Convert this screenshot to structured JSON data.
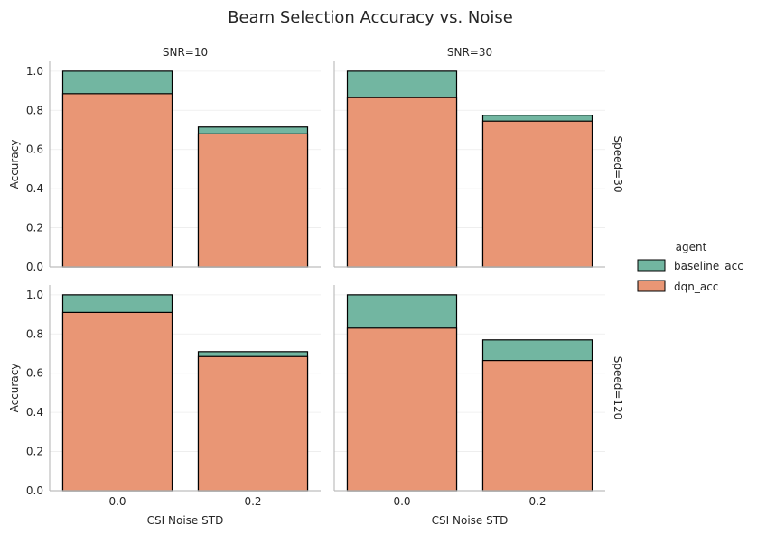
{
  "chart_data": {
    "type": "bar",
    "title": "Beam Selection Accuracy vs. Noise",
    "xlabel": "CSI Noise STD",
    "ylabel": "Accuracy",
    "categories": [
      "0.0",
      "0.2"
    ],
    "ylim": [
      0,
      1.05
    ],
    "yticks": [
      "0.0",
      "0.2",
      "0.4",
      "0.6",
      "0.8",
      "1.0"
    ],
    "grid": true,
    "legend": {
      "title": "agent",
      "position": "right",
      "entries": [
        "baseline_acc",
        "dqn_acc"
      ]
    },
    "colors": {
      "baseline_acc": "#72b6a1",
      "dqn_acc": "#e99675",
      "edge": "#000000"
    },
    "col_labels": [
      "SNR=10",
      "SNR=30"
    ],
    "row_labels": [
      "Speed=30",
      "Speed=120"
    ],
    "panels": [
      {
        "row": 0,
        "col": 0,
        "series": [
          {
            "name": "baseline_acc",
            "values": [
              1.0,
              0.715
            ]
          },
          {
            "name": "dqn_acc",
            "values": [
              0.885,
              0.68
            ]
          }
        ]
      },
      {
        "row": 0,
        "col": 1,
        "series": [
          {
            "name": "baseline_acc",
            "values": [
              1.0,
              0.775
            ]
          },
          {
            "name": "dqn_acc",
            "values": [
              0.865,
              0.745
            ]
          }
        ]
      },
      {
        "row": 1,
        "col": 0,
        "series": [
          {
            "name": "baseline_acc",
            "values": [
              1.0,
              0.71
            ]
          },
          {
            "name": "dqn_acc",
            "values": [
              0.91,
              0.685
            ]
          }
        ]
      },
      {
        "row": 1,
        "col": 1,
        "series": [
          {
            "name": "baseline_acc",
            "values": [
              1.0,
              0.77
            ]
          },
          {
            "name": "dqn_acc",
            "values": [
              0.83,
              0.665
            ]
          }
        ]
      }
    ]
  }
}
